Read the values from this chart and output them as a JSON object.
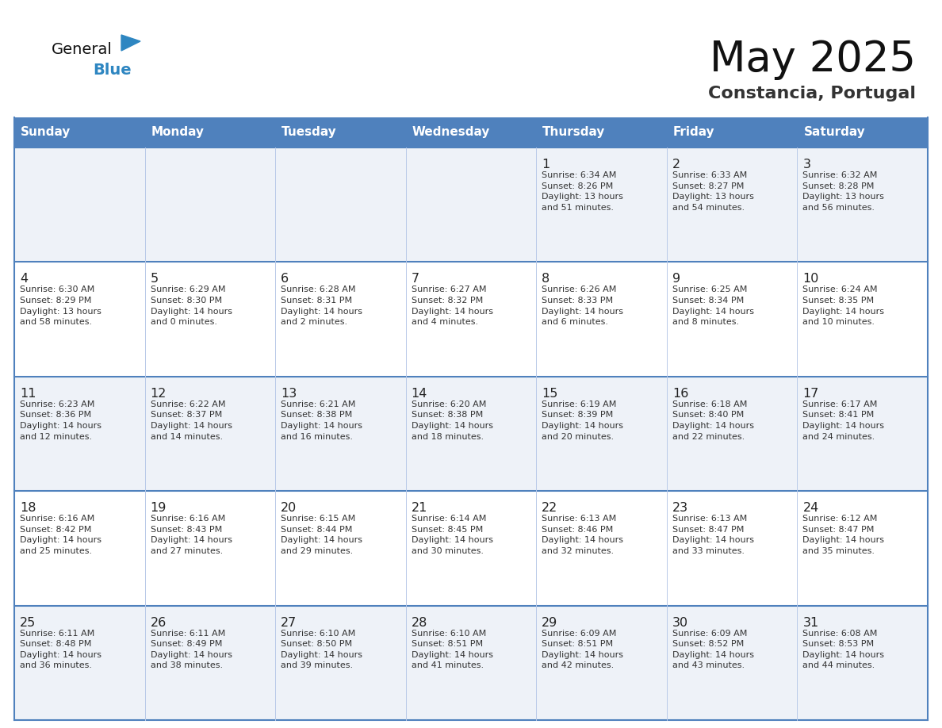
{
  "title": "May 2025",
  "subtitle": "Constancia, Portugal",
  "days_of_week": [
    "Sunday",
    "Monday",
    "Tuesday",
    "Wednesday",
    "Thursday",
    "Friday",
    "Saturday"
  ],
  "header_bg": "#4F81BD",
  "header_text": "#FFFFFF",
  "row_bg_light": "#EEF2F8",
  "row_bg_white": "#FFFFFF",
  "cell_text_color": "#333333",
  "day_number_color": "#222222",
  "grid_color": "#4F81BD",
  "sep_color": "#B8C9E8",
  "title_color": "#111111",
  "subtitle_color": "#333333",
  "logo_general_color": "#111111",
  "logo_blue_color": "#2E86C1",
  "weeks": [
    {
      "bg": "#EEF2F8",
      "days": [
        {
          "date": "",
          "info": ""
        },
        {
          "date": "",
          "info": ""
        },
        {
          "date": "",
          "info": ""
        },
        {
          "date": "",
          "info": ""
        },
        {
          "date": "1",
          "info": "Sunrise: 6:34 AM\nSunset: 8:26 PM\nDaylight: 13 hours\nand 51 minutes."
        },
        {
          "date": "2",
          "info": "Sunrise: 6:33 AM\nSunset: 8:27 PM\nDaylight: 13 hours\nand 54 minutes."
        },
        {
          "date": "3",
          "info": "Sunrise: 6:32 AM\nSunset: 8:28 PM\nDaylight: 13 hours\nand 56 minutes."
        }
      ]
    },
    {
      "bg": "#FFFFFF",
      "days": [
        {
          "date": "4",
          "info": "Sunrise: 6:30 AM\nSunset: 8:29 PM\nDaylight: 13 hours\nand 58 minutes."
        },
        {
          "date": "5",
          "info": "Sunrise: 6:29 AM\nSunset: 8:30 PM\nDaylight: 14 hours\nand 0 minutes."
        },
        {
          "date": "6",
          "info": "Sunrise: 6:28 AM\nSunset: 8:31 PM\nDaylight: 14 hours\nand 2 minutes."
        },
        {
          "date": "7",
          "info": "Sunrise: 6:27 AM\nSunset: 8:32 PM\nDaylight: 14 hours\nand 4 minutes."
        },
        {
          "date": "8",
          "info": "Sunrise: 6:26 AM\nSunset: 8:33 PM\nDaylight: 14 hours\nand 6 minutes."
        },
        {
          "date": "9",
          "info": "Sunrise: 6:25 AM\nSunset: 8:34 PM\nDaylight: 14 hours\nand 8 minutes."
        },
        {
          "date": "10",
          "info": "Sunrise: 6:24 AM\nSunset: 8:35 PM\nDaylight: 14 hours\nand 10 minutes."
        }
      ]
    },
    {
      "bg": "#EEF2F8",
      "days": [
        {
          "date": "11",
          "info": "Sunrise: 6:23 AM\nSunset: 8:36 PM\nDaylight: 14 hours\nand 12 minutes."
        },
        {
          "date": "12",
          "info": "Sunrise: 6:22 AM\nSunset: 8:37 PM\nDaylight: 14 hours\nand 14 minutes."
        },
        {
          "date": "13",
          "info": "Sunrise: 6:21 AM\nSunset: 8:38 PM\nDaylight: 14 hours\nand 16 minutes."
        },
        {
          "date": "14",
          "info": "Sunrise: 6:20 AM\nSunset: 8:38 PM\nDaylight: 14 hours\nand 18 minutes."
        },
        {
          "date": "15",
          "info": "Sunrise: 6:19 AM\nSunset: 8:39 PM\nDaylight: 14 hours\nand 20 minutes."
        },
        {
          "date": "16",
          "info": "Sunrise: 6:18 AM\nSunset: 8:40 PM\nDaylight: 14 hours\nand 22 minutes."
        },
        {
          "date": "17",
          "info": "Sunrise: 6:17 AM\nSunset: 8:41 PM\nDaylight: 14 hours\nand 24 minutes."
        }
      ]
    },
    {
      "bg": "#FFFFFF",
      "days": [
        {
          "date": "18",
          "info": "Sunrise: 6:16 AM\nSunset: 8:42 PM\nDaylight: 14 hours\nand 25 minutes."
        },
        {
          "date": "19",
          "info": "Sunrise: 6:16 AM\nSunset: 8:43 PM\nDaylight: 14 hours\nand 27 minutes."
        },
        {
          "date": "20",
          "info": "Sunrise: 6:15 AM\nSunset: 8:44 PM\nDaylight: 14 hours\nand 29 minutes."
        },
        {
          "date": "21",
          "info": "Sunrise: 6:14 AM\nSunset: 8:45 PM\nDaylight: 14 hours\nand 30 minutes."
        },
        {
          "date": "22",
          "info": "Sunrise: 6:13 AM\nSunset: 8:46 PM\nDaylight: 14 hours\nand 32 minutes."
        },
        {
          "date": "23",
          "info": "Sunrise: 6:13 AM\nSunset: 8:47 PM\nDaylight: 14 hours\nand 33 minutes."
        },
        {
          "date": "24",
          "info": "Sunrise: 6:12 AM\nSunset: 8:47 PM\nDaylight: 14 hours\nand 35 minutes."
        }
      ]
    },
    {
      "bg": "#EEF2F8",
      "days": [
        {
          "date": "25",
          "info": "Sunrise: 6:11 AM\nSunset: 8:48 PM\nDaylight: 14 hours\nand 36 minutes."
        },
        {
          "date": "26",
          "info": "Sunrise: 6:11 AM\nSunset: 8:49 PM\nDaylight: 14 hours\nand 38 minutes."
        },
        {
          "date": "27",
          "info": "Sunrise: 6:10 AM\nSunset: 8:50 PM\nDaylight: 14 hours\nand 39 minutes."
        },
        {
          "date": "28",
          "info": "Sunrise: 6:10 AM\nSunset: 8:51 PM\nDaylight: 14 hours\nand 41 minutes."
        },
        {
          "date": "29",
          "info": "Sunrise: 6:09 AM\nSunset: 8:51 PM\nDaylight: 14 hours\nand 42 minutes."
        },
        {
          "date": "30",
          "info": "Sunrise: 6:09 AM\nSunset: 8:52 PM\nDaylight: 14 hours\nand 43 minutes."
        },
        {
          "date": "31",
          "info": "Sunrise: 6:08 AM\nSunset: 8:53 PM\nDaylight: 14 hours\nand 44 minutes."
        }
      ]
    }
  ]
}
